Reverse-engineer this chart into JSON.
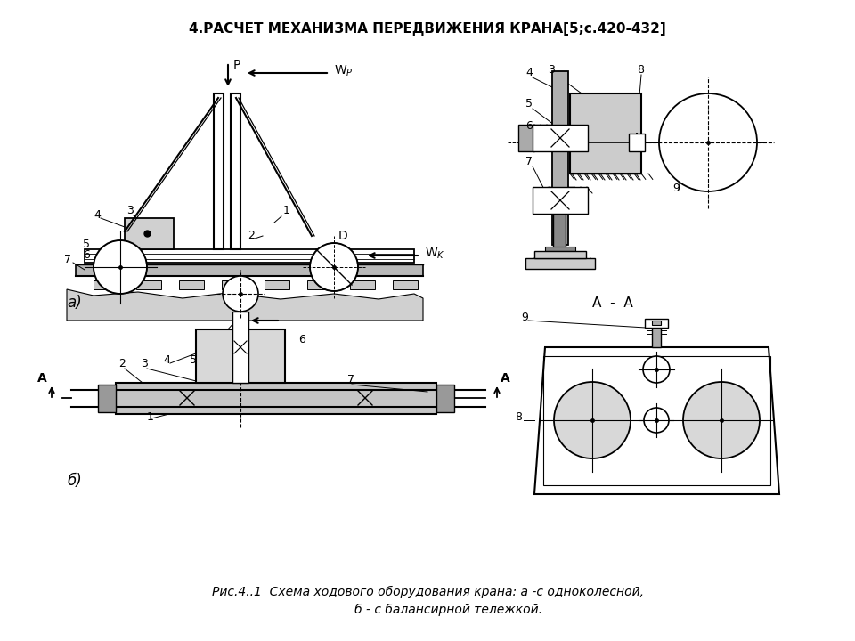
{
  "title": "4.РАСЧЕТ МЕХАНИЗМА ПЕРЕДВИЖЕНИЯ КРАНА[5;с.420-432]",
  "cap1": "Рис.4..1  Схема ходового оборудования крана: а -с одноколесной,",
  "cap2": "           б - с балансирной тележкой.",
  "label_a": "а)",
  "label_b": "б)",
  "label_aa": "А  -  А",
  "bg": "#ffffff",
  "lc": "#000000",
  "gc": "#cccccc",
  "dg": "#aaaaaa",
  "lg": "#e8e8e8"
}
